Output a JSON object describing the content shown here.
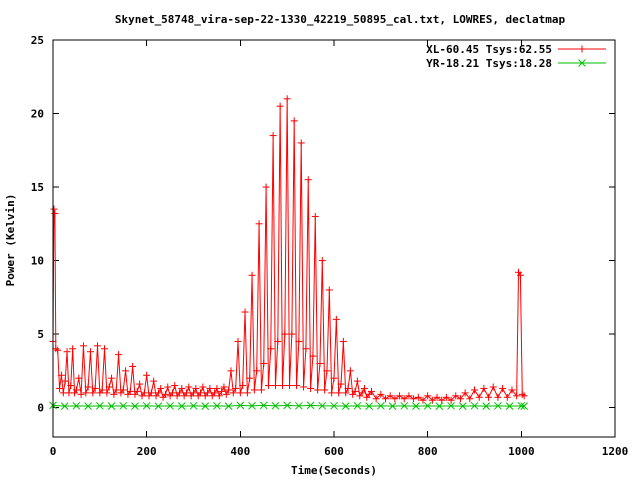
{
  "chart_data": {
    "type": "line",
    "title": "Skynet_58748_vira-sep-22-1330_42219_50895_cal.txt, LOWRES, declatmap",
    "xlabel": "Time(Seconds)",
    "ylabel": "Power (Kelvin)",
    "xlim": [
      0,
      1200
    ],
    "ylim": [
      -2,
      25
    ],
    "xticks": [
      0,
      200,
      400,
      600,
      800,
      1000,
      1200
    ],
    "yticks": [
      0,
      5,
      10,
      15,
      20,
      25
    ],
    "grid": false,
    "legend_position": "top-right",
    "series": [
      {
        "name": "XL-60.45 Tsys:62.55",
        "color": "#ff0000",
        "marker": "plus",
        "points": [
          [
            0,
            4.5
          ],
          [
            2,
            13.5
          ],
          [
            4,
            13.2
          ],
          [
            6,
            4.0
          ],
          [
            10,
            3.9
          ],
          [
            14,
            1.3
          ],
          [
            18,
            2.2
          ],
          [
            22,
            1.0
          ],
          [
            26,
            1.8
          ],
          [
            30,
            3.8
          ],
          [
            34,
            1.0
          ],
          [
            38,
            1.5
          ],
          [
            42,
            4.0
          ],
          [
            46,
            1.0
          ],
          [
            50,
            1.2
          ],
          [
            55,
            2.0
          ],
          [
            60,
            0.9
          ],
          [
            65,
            4.2
          ],
          [
            70,
            1.0
          ],
          [
            75,
            1.4
          ],
          [
            80,
            3.8
          ],
          [
            85,
            1.0
          ],
          [
            90,
            1.3
          ],
          [
            95,
            4.2
          ],
          [
            100,
            1.0
          ],
          [
            105,
            1.2
          ],
          [
            110,
            4.0
          ],
          [
            115,
            1.0
          ],
          [
            120,
            1.4
          ],
          [
            125,
            2.0
          ],
          [
            130,
            0.9
          ],
          [
            135,
            1.2
          ],
          [
            140,
            3.6
          ],
          [
            145,
            1.0
          ],
          [
            150,
            1.2
          ],
          [
            155,
            2.5
          ],
          [
            160,
            0.9
          ],
          [
            165,
            1.1
          ],
          [
            170,
            2.8
          ],
          [
            175,
            0.9
          ],
          [
            180,
            1.1
          ],
          [
            185,
            1.6
          ],
          [
            190,
            0.8
          ],
          [
            195,
            1.0
          ],
          [
            200,
            2.2
          ],
          [
            205,
            0.8
          ],
          [
            210,
            1.0
          ],
          [
            215,
            1.8
          ],
          [
            220,
            0.8
          ],
          [
            225,
            1.0
          ],
          [
            230,
            1.3
          ],
          [
            235,
            0.7
          ],
          [
            240,
            0.9
          ],
          [
            245,
            1.4
          ],
          [
            250,
            0.8
          ],
          [
            255,
            1.0
          ],
          [
            260,
            1.5
          ],
          [
            265,
            0.8
          ],
          [
            270,
            1.0
          ],
          [
            275,
            1.3
          ],
          [
            280,
            0.8
          ],
          [
            285,
            1.0
          ],
          [
            290,
            1.4
          ],
          [
            295,
            0.8
          ],
          [
            300,
            1.0
          ],
          [
            305,
            1.3
          ],
          [
            310,
            0.8
          ],
          [
            315,
            1.0
          ],
          [
            320,
            1.4
          ],
          [
            325,
            0.8
          ],
          [
            330,
            1.0
          ],
          [
            335,
            1.3
          ],
          [
            340,
            0.8
          ],
          [
            345,
            1.0
          ],
          [
            350,
            1.3
          ],
          [
            355,
            0.8
          ],
          [
            360,
            1.1
          ],
          [
            365,
            1.4
          ],
          [
            370,
            0.9
          ],
          [
            375,
            1.2
          ],
          [
            380,
            2.5
          ],
          [
            385,
            1.0
          ],
          [
            390,
            1.3
          ],
          [
            395,
            4.5
          ],
          [
            400,
            1.0
          ],
          [
            405,
            1.5
          ],
          [
            410,
            6.5
          ],
          [
            415,
            1.0
          ],
          [
            420,
            2.0
          ],
          [
            425,
            9.0
          ],
          [
            430,
            1.2
          ],
          [
            435,
            2.5
          ],
          [
            440,
            12.5
          ],
          [
            445,
            1.2
          ],
          [
            450,
            3.0
          ],
          [
            455,
            15.0
          ],
          [
            460,
            1.5
          ],
          [
            465,
            4.0
          ],
          [
            470,
            18.5
          ],
          [
            475,
            1.5
          ],
          [
            480,
            4.5
          ],
          [
            485,
            20.5
          ],
          [
            490,
            1.5
          ],
          [
            495,
            5.0
          ],
          [
            500,
            21.0
          ],
          [
            505,
            1.5
          ],
          [
            510,
            5.0
          ],
          [
            515,
            19.5
          ],
          [
            520,
            1.5
          ],
          [
            525,
            4.5
          ],
          [
            530,
            18.0
          ],
          [
            535,
            1.4
          ],
          [
            540,
            4.0
          ],
          [
            545,
            15.5
          ],
          [
            550,
            1.3
          ],
          [
            555,
            3.5
          ],
          [
            560,
            13.0
          ],
          [
            565,
            1.2
          ],
          [
            570,
            3.0
          ],
          [
            575,
            10.0
          ],
          [
            580,
            1.2
          ],
          [
            585,
            2.5
          ],
          [
            590,
            8.0
          ],
          [
            595,
            1.0
          ],
          [
            600,
            2.0
          ],
          [
            605,
            6.0
          ],
          [
            610,
            1.0
          ],
          [
            615,
            1.6
          ],
          [
            620,
            4.5
          ],
          [
            625,
            1.0
          ],
          [
            630,
            1.3
          ],
          [
            635,
            2.5
          ],
          [
            640,
            0.9
          ],
          [
            645,
            1.1
          ],
          [
            650,
            1.8
          ],
          [
            655,
            0.8
          ],
          [
            660,
            1.0
          ],
          [
            665,
            1.3
          ],
          [
            670,
            0.7
          ],
          [
            675,
            0.9
          ],
          [
            680,
            1.1
          ],
          [
            690,
            0.6
          ],
          [
            700,
            0.9
          ],
          [
            710,
            0.6
          ],
          [
            720,
            0.8
          ],
          [
            730,
            0.6
          ],
          [
            740,
            0.8
          ],
          [
            750,
            0.6
          ],
          [
            760,
            0.8
          ],
          [
            770,
            0.6
          ],
          [
            780,
            0.7
          ],
          [
            790,
            0.5
          ],
          [
            800,
            0.8
          ],
          [
            810,
            0.5
          ],
          [
            820,
            0.7
          ],
          [
            830,
            0.5
          ],
          [
            840,
            0.7
          ],
          [
            850,
            0.5
          ],
          [
            860,
            0.8
          ],
          [
            870,
            0.6
          ],
          [
            880,
            1.0
          ],
          [
            890,
            0.6
          ],
          [
            900,
            1.2
          ],
          [
            910,
            0.7
          ],
          [
            920,
            1.3
          ],
          [
            930,
            0.7
          ],
          [
            940,
            1.4
          ],
          [
            950,
            0.7
          ],
          [
            960,
            1.3
          ],
          [
            970,
            0.7
          ],
          [
            980,
            1.2
          ],
          [
            990,
            0.8
          ],
          [
            994,
            9.2
          ],
          [
            998,
            9.0
          ],
          [
            1002,
            0.9
          ],
          [
            1006,
            0.8
          ]
        ]
      },
      {
        "name": "YR-18.21 Tsys:18.28",
        "color": "#00c000",
        "marker": "cross",
        "points": [
          [
            0,
            0.15
          ],
          [
            25,
            0.1
          ],
          [
            50,
            0.12
          ],
          [
            75,
            0.1
          ],
          [
            100,
            0.12
          ],
          [
            125,
            0.1
          ],
          [
            150,
            0.12
          ],
          [
            175,
            0.1
          ],
          [
            200,
            0.12
          ],
          [
            225,
            0.1
          ],
          [
            250,
            0.12
          ],
          [
            275,
            0.1
          ],
          [
            300,
            0.12
          ],
          [
            325,
            0.1
          ],
          [
            350,
            0.12
          ],
          [
            375,
            0.1
          ],
          [
            400,
            0.15
          ],
          [
            425,
            0.12
          ],
          [
            450,
            0.15
          ],
          [
            475,
            0.12
          ],
          [
            500,
            0.15
          ],
          [
            525,
            0.12
          ],
          [
            550,
            0.15
          ],
          [
            575,
            0.12
          ],
          [
            600,
            0.12
          ],
          [
            625,
            0.1
          ],
          [
            650,
            0.12
          ],
          [
            675,
            0.1
          ],
          [
            700,
            0.12
          ],
          [
            725,
            0.1
          ],
          [
            750,
            0.12
          ],
          [
            775,
            0.1
          ],
          [
            800,
            0.12
          ],
          [
            825,
            0.1
          ],
          [
            850,
            0.12
          ],
          [
            875,
            0.1
          ],
          [
            900,
            0.12
          ],
          [
            925,
            0.1
          ],
          [
            950,
            0.12
          ],
          [
            975,
            0.1
          ],
          [
            1000,
            0.12
          ],
          [
            1006,
            0.1
          ]
        ]
      }
    ]
  }
}
